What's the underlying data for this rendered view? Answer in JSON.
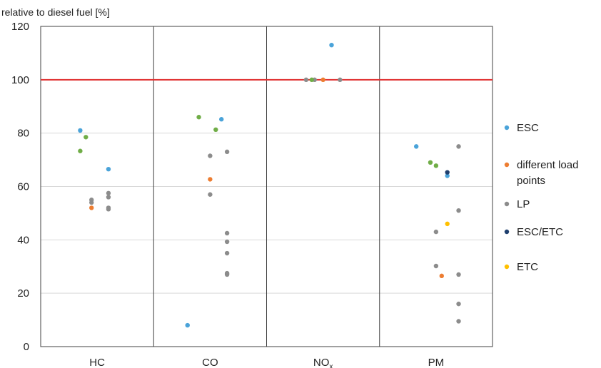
{
  "chart_data": {
    "type": "scatter",
    "ylabel": "relative to diesel fuel [%]",
    "ylim": [
      0,
      120
    ],
    "yticks": [
      0,
      20,
      40,
      60,
      80,
      100,
      120
    ],
    "categories": [
      {
        "main": "HC",
        "sub": ""
      },
      {
        "main": "CO",
        "sub": ""
      },
      {
        "main": "NO",
        "sub": "x"
      },
      {
        "main": "PM",
        "sub": ""
      }
    ],
    "reference_line": {
      "y": 100,
      "color": "#e03030"
    },
    "grid": "horizontal",
    "legend_position": "right",
    "series": [
      {
        "name": "ESC",
        "color": "#4aa3d9",
        "points": [
          {
            "cat": 0,
            "offset": -0.3,
            "y": 81
          },
          {
            "cat": 0,
            "offset": 0.2,
            "y": 66.5
          },
          {
            "cat": 1,
            "offset": 0.2,
            "y": 85.2
          },
          {
            "cat": 1,
            "offset": -0.4,
            "y": 8
          },
          {
            "cat": 2,
            "offset": 0.15,
            "y": 113
          },
          {
            "cat": 3,
            "offset": -0.35,
            "y": 75
          },
          {
            "cat": 3,
            "offset": 0.2,
            "y": 64
          }
        ]
      },
      {
        "name": "different load points",
        "color": "#ed7d31",
        "points": [
          {
            "cat": 0,
            "offset": -0.1,
            "y": 52
          },
          {
            "cat": 1,
            "offset": 0.0,
            "y": 62.7
          },
          {
            "cat": 2,
            "offset": 0.0,
            "y": 100
          },
          {
            "cat": 3,
            "offset": 0.1,
            "y": 26.5
          }
        ]
      },
      {
        "name": "LP",
        "color": "#8c8c8c",
        "points": [
          {
            "cat": 0,
            "offset": -0.1,
            "y": 55
          },
          {
            "cat": 0,
            "offset": -0.1,
            "y": 54
          },
          {
            "cat": 0,
            "offset": 0.2,
            "y": 57.5
          },
          {
            "cat": 0,
            "offset": 0.2,
            "y": 56
          },
          {
            "cat": 0,
            "offset": 0.2,
            "y": 52
          },
          {
            "cat": 0,
            "offset": 0.2,
            "y": 51.5
          },
          {
            "cat": 1,
            "offset": 0.0,
            "y": 71.5
          },
          {
            "cat": 1,
            "offset": 0.3,
            "y": 73
          },
          {
            "cat": 1,
            "offset": 0.0,
            "y": 57
          },
          {
            "cat": 1,
            "offset": 0.3,
            "y": 42.5
          },
          {
            "cat": 1,
            "offset": 0.3,
            "y": 39.3
          },
          {
            "cat": 1,
            "offset": 0.3,
            "y": 35
          },
          {
            "cat": 1,
            "offset": 0.3,
            "y": 27.5
          },
          {
            "cat": 1,
            "offset": 0.3,
            "y": 27
          },
          {
            "cat": 2,
            "offset": -0.3,
            "y": 100
          },
          {
            "cat": 2,
            "offset": -0.15,
            "y": 100
          },
          {
            "cat": 2,
            "offset": 0.3,
            "y": 100
          },
          {
            "cat": 3,
            "offset": 0.4,
            "y": 75
          },
          {
            "cat": 3,
            "offset": 0.4,
            "y": 51
          },
          {
            "cat": 3,
            "offset": 0.0,
            "y": 43
          },
          {
            "cat": 3,
            "offset": 0.0,
            "y": 30.2
          },
          {
            "cat": 3,
            "offset": 0.4,
            "y": 27
          },
          {
            "cat": 3,
            "offset": 0.4,
            "y": 16
          },
          {
            "cat": 3,
            "offset": 0.4,
            "y": 9.5
          }
        ]
      },
      {
        "name": "ESC/ETC",
        "color": "#1f3f6e",
        "points": [
          {
            "cat": 3,
            "offset": 0.2,
            "y": 65.3
          }
        ]
      },
      {
        "name": "ETC",
        "color": "#ffc000",
        "points": [
          {
            "cat": 3,
            "offset": 0.2,
            "y": 46
          }
        ]
      },
      {
        "name": "",
        "color": "#70ad47",
        "points": [
          {
            "cat": 0,
            "offset": -0.2,
            "y": 78.5
          },
          {
            "cat": 0,
            "offset": -0.3,
            "y": 73.3
          },
          {
            "cat": 1,
            "offset": -0.2,
            "y": 86
          },
          {
            "cat": 1,
            "offset": 0.1,
            "y": 81.3
          },
          {
            "cat": 2,
            "offset": -0.2,
            "y": 100
          },
          {
            "cat": 3,
            "offset": -0.1,
            "y": 69
          },
          {
            "cat": 3,
            "offset": 0.0,
            "y": 67.8
          }
        ]
      }
    ]
  }
}
